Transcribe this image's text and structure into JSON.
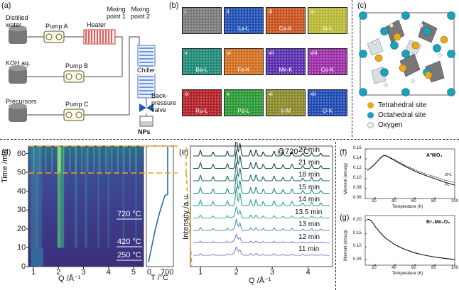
{
  "panels": {
    "a": "(a)",
    "b": "(b)",
    "c": "(c)",
    "d": "(d)",
    "e": "(e)",
    "f": "(f)",
    "g": "(g)"
  },
  "schematic": {
    "distilled_water": [
      "Distilled",
      "water"
    ],
    "pump_a": "Pump A",
    "heater": "Heater",
    "mixing1": [
      "Mixing",
      "point 1"
    ],
    "mixing2": [
      "Mixing",
      "point 2"
    ],
    "koh": "KOH aq.",
    "pump_b": "Pump B",
    "chiller": "Chiller",
    "precursors": "Precursors",
    "pump_c": "Pump C",
    "bpr": [
      "Back-",
      "pressure",
      "valve"
    ],
    "nps": "NPs"
  },
  "eds": {
    "tiles": [
      {
        "num": "i",
        "el": "",
        "color": "#7a7a7a"
      },
      {
        "num": "ii",
        "el": "La-L",
        "color": "#1f4fb3"
      },
      {
        "num": "iii",
        "el": "Ca-K",
        "color": "#c8531f"
      },
      {
        "num": "iv",
        "el": "Sr-L",
        "color": "#b8b836"
      },
      {
        "num": "v",
        "el": "Ba-L",
        "color": "#1f8a78"
      },
      {
        "num": "vi",
        "el": "Fe-K",
        "color": "#d2701f"
      },
      {
        "num": "vii",
        "el": "Mn-K",
        "color": "#5a2fb0"
      },
      {
        "num": "viii",
        "el": "Co-K",
        "color": "#9b2ea8"
      },
      {
        "num": "ix",
        "el": "Ru-L",
        "color": "#b3202a"
      },
      {
        "num": "x",
        "el": "Pd-L",
        "color": "#2a9a35"
      },
      {
        "num": "xi",
        "el": "Ir-M",
        "color": "#8a8a2a"
      },
      {
        "num": "xii",
        "el": "O-K",
        "color": "#1f4ab3"
      }
    ]
  },
  "structure": {
    "legend": [
      "Tetrahedral site",
      "Octahedral site",
      "Oxygen"
    ],
    "colors": {
      "tet": "#e8a91c",
      "oct": "#1aa3b8",
      "oxy": "#eeeeee"
    }
  },
  "chart_data": [
    {
      "id": "d",
      "type": "heatmap",
      "ylabel": "Time /min",
      "xlabel": "Q /Å⁻¹",
      "xticks": [
        "1",
        "2",
        "3",
        "4",
        "5"
      ],
      "yticks": [
        "0",
        "10",
        "20",
        "30",
        "40",
        "50",
        "60"
      ],
      "xlim": [
        0.8,
        5.4
      ],
      "ylim": [
        0,
        64
      ],
      "annotations": [
        "720 °C",
        "420 °C",
        "250 °C"
      ],
      "temp_axis": {
        "xlabel": "T /°C",
        "ticks": [
          "0",
          "700"
        ]
      }
    },
    {
      "id": "e",
      "type": "line",
      "title": "@720 °C",
      "ylabel": "Intensity /a.u.",
      "xlabel": "Q /Å⁻¹",
      "xticks": [
        "1",
        "2",
        "3",
        "4"
      ],
      "xlim": [
        0.8,
        4.6
      ],
      "series": [
        {
          "name": "27 min"
        },
        {
          "name": "21 min"
        },
        {
          "name": "18 min"
        },
        {
          "name": "15 min"
        },
        {
          "name": "14 min"
        },
        {
          "name": "13.5 min"
        },
        {
          "name": "13 min"
        },
        {
          "name": "12 min"
        },
        {
          "name": "11 min"
        }
      ]
    },
    {
      "id": "f",
      "type": "line",
      "title": "A³WO₄",
      "ylabel": "Moment (emu/g)",
      "xlabel": "Temperature (K)",
      "xticks": [
        "20",
        "40",
        "60",
        "80",
        "100"
      ],
      "yticks": [
        "0.06",
        "0.08",
        "0.10",
        "0.12",
        "0.14",
        "0.16"
      ],
      "xlim": [
        10,
        100
      ],
      "ylim": [
        0.06,
        0.16
      ],
      "series": [
        {
          "name": "ZFC",
          "x": [
            12,
            15,
            20,
            25,
            28,
            30,
            35,
            40,
            50,
            60,
            70,
            80,
            90,
            100
          ],
          "y": [
            0.117,
            0.121,
            0.13,
            0.141,
            0.146,
            0.147,
            0.142,
            0.136,
            0.125,
            0.115,
            0.107,
            0.1,
            0.093,
            0.087
          ]
        },
        {
          "name": "FC",
          "x": [
            12,
            15,
            20,
            25,
            28,
            30,
            35,
            40,
            50,
            60,
            70,
            80,
            90,
            100
          ],
          "y": [
            0.117,
            0.121,
            0.13,
            0.141,
            0.146,
            0.147,
            0.143,
            0.138,
            0.127,
            0.118,
            0.11,
            0.104,
            0.097,
            0.092
          ]
        }
      ]
    },
    {
      "id": "g",
      "type": "line",
      "title": "B⁵₂Mo₃O₈",
      "ylabel": "Moment (emu/g)",
      "xlabel": "Temperature (K)",
      "xticks": [
        "20",
        "40",
        "60",
        "80",
        "100"
      ],
      "yticks": [
        "0.05",
        "0.10",
        "0.15",
        "0.20"
      ],
      "xlim": [
        10,
        100
      ],
      "ylim": [
        0.03,
        0.22
      ],
      "series": [
        {
          "name": "M",
          "x": [
            12,
            14,
            16,
            18,
            20,
            25,
            30,
            40,
            50,
            60,
            70,
            80,
            90,
            100
          ],
          "y": [
            0.205,
            0.205,
            0.2,
            0.19,
            0.178,
            0.155,
            0.135,
            0.108,
            0.09,
            0.077,
            0.068,
            0.061,
            0.056,
            0.052
          ]
        }
      ]
    }
  ]
}
